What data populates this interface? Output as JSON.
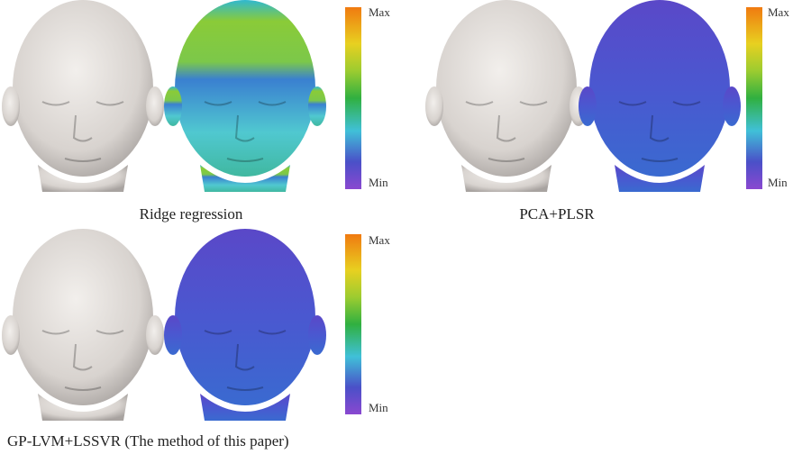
{
  "panels": [
    {
      "caption": "Ridge regression",
      "colorbar": {
        "max_label": "Max",
        "min_label": "Min"
      }
    },
    {
      "caption": "PCA+PLSR",
      "colorbar": {
        "max_label": "Max",
        "min_label": "Min"
      }
    },
    {
      "caption": "GP-LVM+LSSVR (The method of this paper)",
      "colorbar": {
        "max_label": "Max",
        "min_label": "Min"
      }
    }
  ]
}
